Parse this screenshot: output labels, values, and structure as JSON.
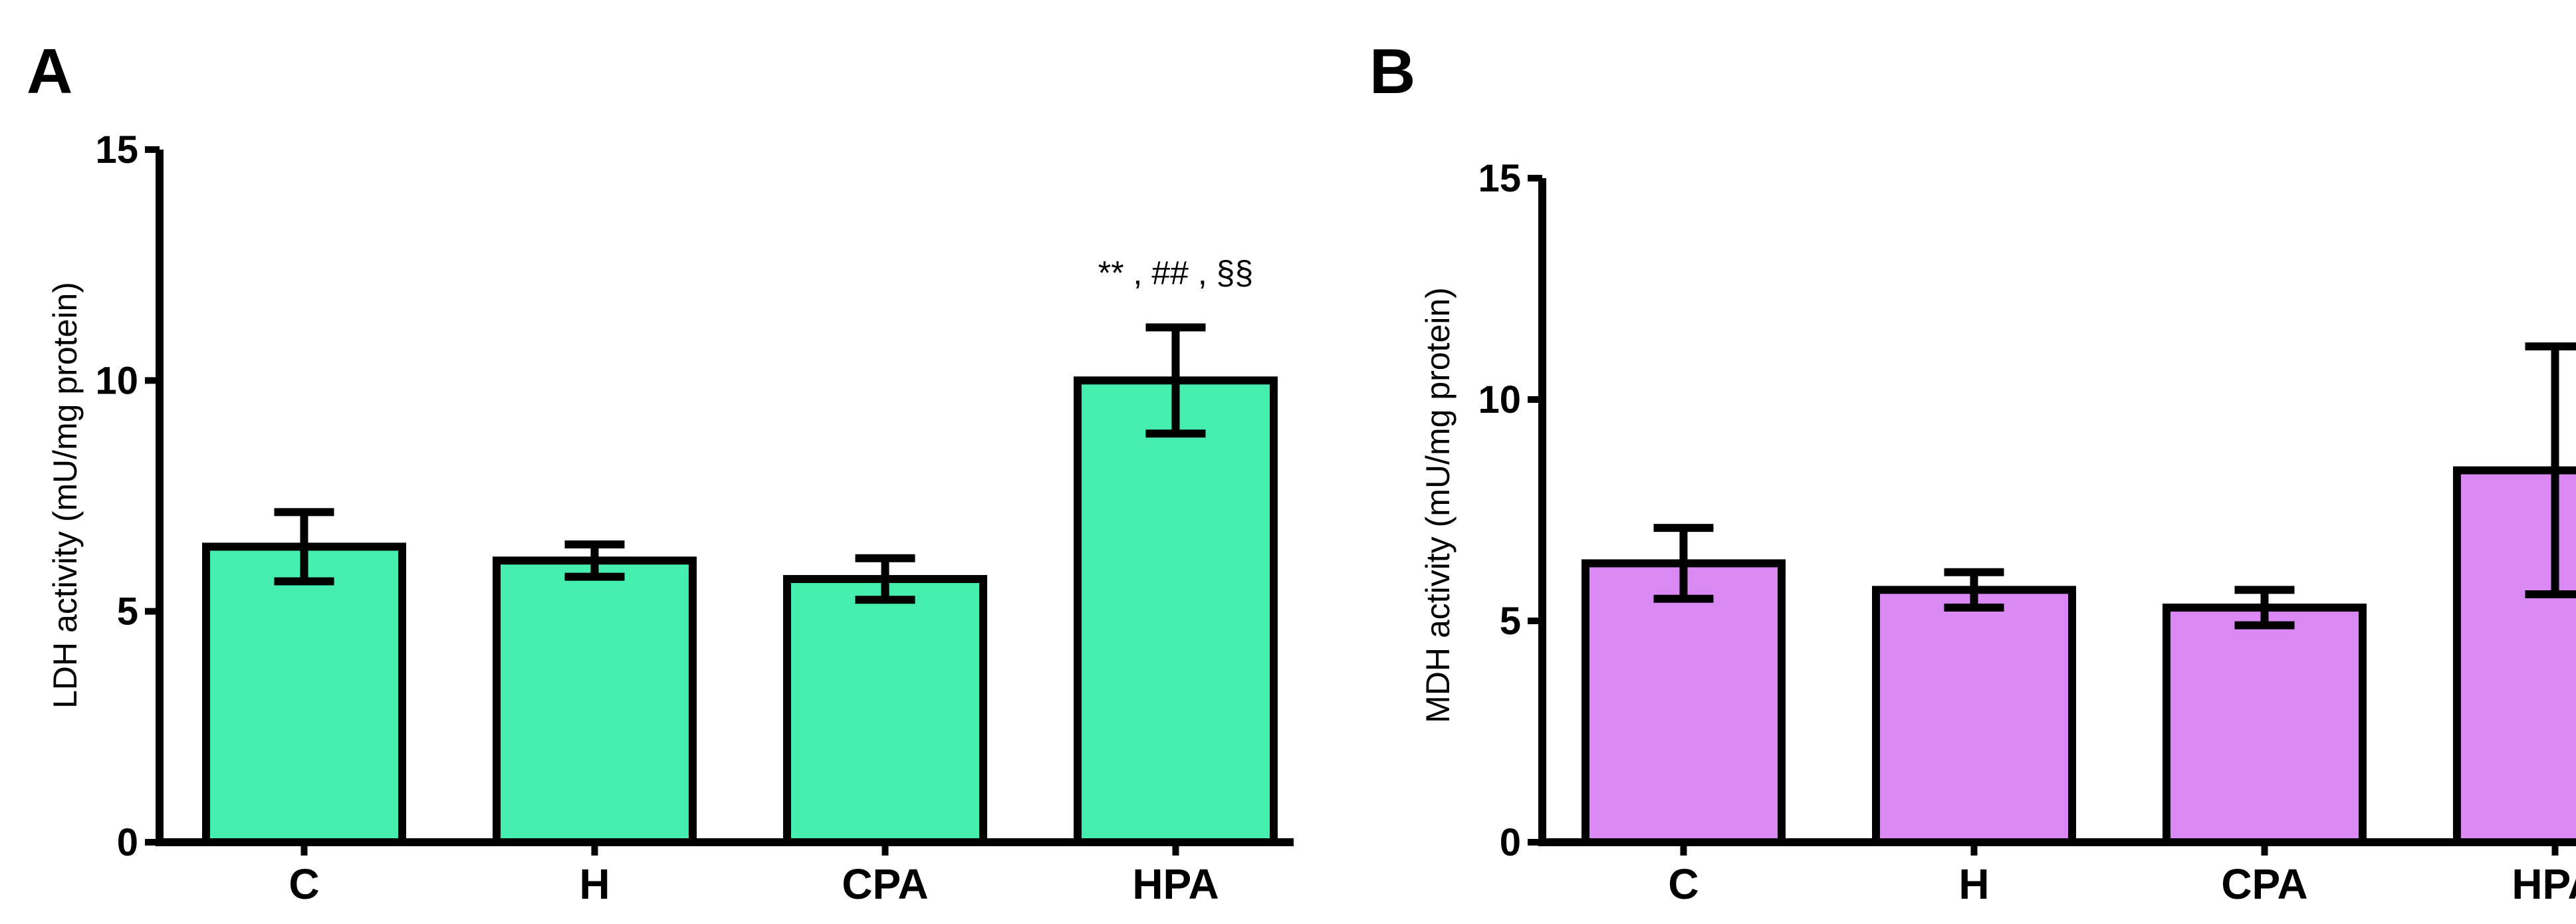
{
  "chart_data": [
    {
      "type": "bar",
      "panel": "A",
      "ylabel": "LDH activity (mU/mg protein)",
      "xlabel": "",
      "categories": [
        "C",
        "H",
        "CPA",
        "HPA"
      ],
      "values": [
        6.4,
        6.1,
        5.7,
        10.0
      ],
      "errors": [
        0.75,
        0.35,
        0.45,
        1.15
      ],
      "ylim": [
        0,
        15
      ],
      "yticks": [
        "0",
        "5",
        "10",
        "15"
      ],
      "bar_color": "#45EDAF",
      "annotations": [
        {
          "category": "HPA",
          "text": "** , ## , §§"
        }
      ]
    },
    {
      "type": "bar",
      "panel": "B",
      "ylabel": "MDH activity (mU/mg protein)",
      "xlabel": "",
      "categories": [
        "C",
        "H",
        "CPA",
        "HPA"
      ],
      "values": [
        6.3,
        5.7,
        5.3,
        8.4
      ],
      "errors": [
        0.8,
        0.4,
        0.4,
        2.8
      ],
      "ylim": [
        0,
        15
      ],
      "yticks": [
        "0",
        "5",
        "10",
        "15"
      ],
      "bar_color": "#DA88F4",
      "annotations": []
    }
  ]
}
